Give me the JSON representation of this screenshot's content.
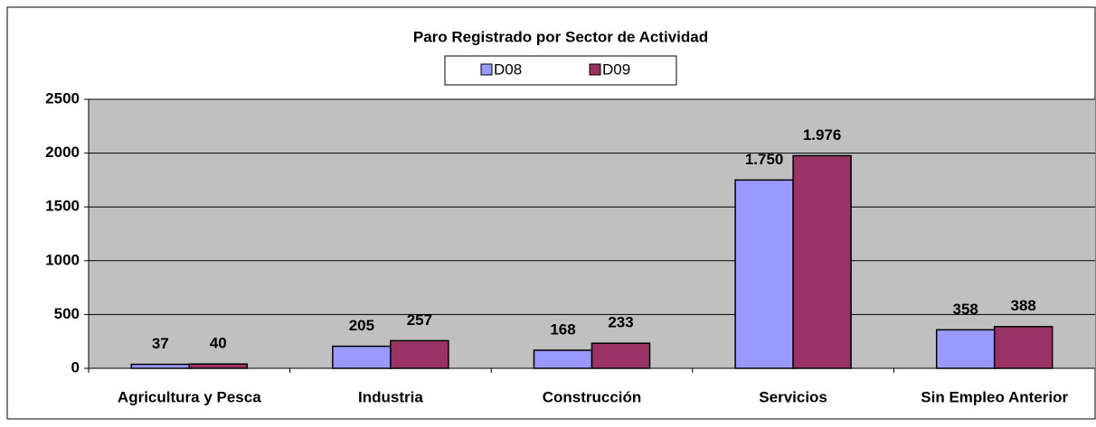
{
  "chart_data": {
    "type": "bar",
    "title": "Paro Registrado por Sector de Actividad",
    "categories": [
      "Agricultura y Pesca",
      "Industria",
      "Construcción",
      "Servicios",
      "Sin Empleo Anterior"
    ],
    "series": [
      {
        "name": "D08",
        "color": "#9999ff",
        "values": [
          37,
          205,
          168,
          1750,
          358
        ],
        "value_labels": [
          "37",
          "205",
          "168",
          "1.750",
          "358"
        ]
      },
      {
        "name": "D09",
        "color": "#993366",
        "values": [
          40,
          257,
          233,
          1976,
          388
        ],
        "value_labels": [
          "40",
          "257",
          "233",
          "1.976",
          "388"
        ]
      }
    ],
    "ylim": [
      0,
      2500
    ],
    "yticks": [
      0,
      500,
      1000,
      1500,
      2000,
      2500
    ],
    "grid": true
  }
}
